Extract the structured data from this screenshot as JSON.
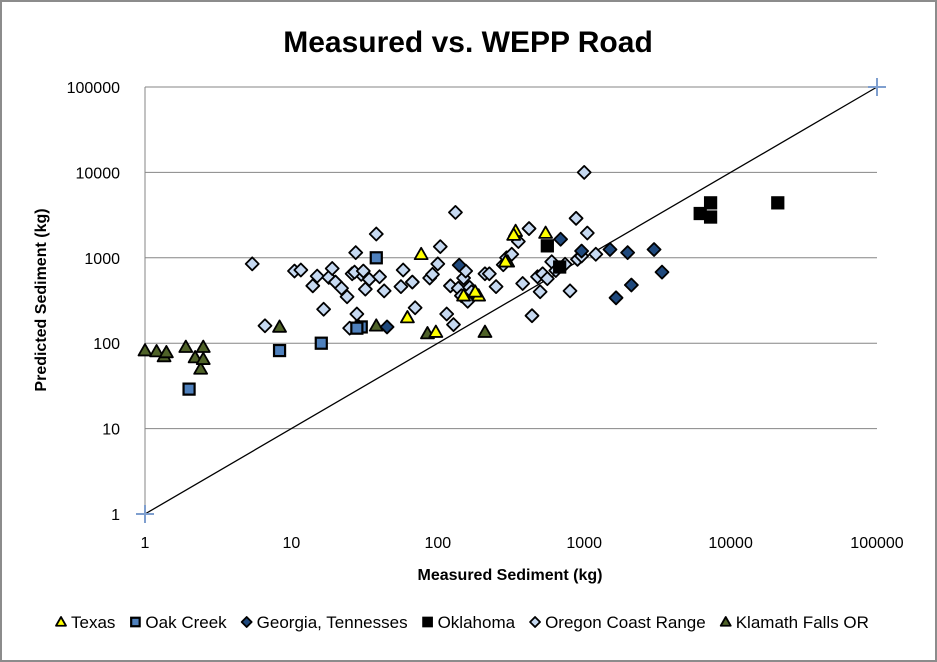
{
  "chart_data": {
    "type": "scatter",
    "title": "Measured vs. WEPP Road",
    "xlabel": "Measured Sediment (kg)",
    "ylabel": "Predicted Sediment (kg)",
    "xscale": "log",
    "yscale": "log",
    "xlim": [
      1,
      100000
    ],
    "ylim": [
      1,
      100000
    ],
    "x_ticks": [
      1,
      10,
      100,
      1000,
      10000,
      100000
    ],
    "x_tick_labels": [
      "1",
      "10",
      "100",
      "1000",
      "10000",
      "100000"
    ],
    "y_ticks": [
      1,
      10,
      100,
      1000,
      10000,
      100000
    ],
    "y_tick_labels": [
      "1",
      "10",
      "100",
      "1000",
      "10000",
      "100000"
    ],
    "grid": "horizontal major",
    "legend_position": "bottom",
    "reference_line": {
      "name": "1:1 line",
      "x": [
        1,
        100000
      ],
      "y": [
        1,
        100000
      ],
      "color": "#000000",
      "end_marker_color": "#7f9fcf"
    },
    "series": [
      {
        "name": "Texas",
        "marker": "triangle",
        "fill": "#ffff00",
        "stroke": "#000000",
        "x": [
          77,
          62,
          97,
          190,
          340,
          330,
          545,
          290,
          180,
          150
        ],
        "y": [
          1100,
          200,
          135,
          360,
          2050,
          1850,
          1950,
          900,
          400,
          360
        ]
      },
      {
        "name": "Oak Creek",
        "marker": "square",
        "fill": "#4f81bd",
        "stroke": "#000000",
        "x": [
          38,
          8.3,
          16,
          2.0,
          30,
          28
        ],
        "y": [
          1000,
          82,
          100,
          29,
          155,
          150
        ]
      },
      {
        "name": "Georgia, Tennesses",
        "marker": "diamond",
        "fill": "#1f497d",
        "stroke": "#000000",
        "x": [
          690,
          1500,
          960,
          1980,
          3000,
          1650,
          2100,
          3400,
          140,
          45
        ],
        "y": [
          1650,
          1250,
          1200,
          1150,
          1250,
          340,
          480,
          680,
          820,
          155
        ]
      },
      {
        "name": "Oklahoma",
        "marker": "square",
        "fill": "#000000",
        "stroke": "#000000",
        "x": [
          560,
          680,
          6200,
          7300,
          7300,
          21000
        ],
        "y": [
          1380,
          780,
          3300,
          4400,
          3000,
          4400
        ]
      },
      {
        "name": "Oregon Coast Range",
        "marker": "diamond",
        "fill": "#c6d9f1",
        "stroke": "#000000",
        "x": [
          5.4,
          6.6,
          10.5,
          11.6,
          14.0,
          15.0,
          16.6,
          18.0,
          19.0,
          20.0,
          22.0,
          24.0,
          25.0,
          26.0,
          27.5,
          28.0,
          30.0,
          32.0,
          34.0,
          38.0,
          43.0,
          58.0,
          70.0,
          88.0,
          92.0,
          100.0,
          104.0,
          115.0,
          122.0,
          128.0,
          132.0,
          138.0,
          145.0,
          150.0,
          155.0,
          160.0,
          165.0,
          170.0,
          210.0,
          225.0,
          250.0,
          280.0,
          295.0,
          320.0,
          355.0,
          380.0,
          420.0,
          440.0,
          480.0,
          500.0,
          520.0,
          560.0,
          600.0,
          640.0,
          740.0,
          800.0,
          880.0,
          900.0,
          960.0,
          1000.0,
          1050.0,
          1200.0,
          27.0,
          31.0,
          40.0,
          56.0,
          67.0
        ],
        "y": [
          850,
          160,
          700,
          720,
          470,
          610,
          250,
          590,
          750,
          520,
          440,
          350,
          150,
          650,
          1150,
          220,
          640,
          430,
          560,
          1900,
          410,
          720,
          260,
          580,
          640,
          850,
          1350,
          220,
          470,
          165,
          3400,
          440,
          360,
          580,
          700,
          310,
          450,
          400,
          650,
          650,
          460,
          830,
          1000,
          1100,
          1550,
          500,
          2200,
          210,
          600,
          400,
          650,
          570,
          900,
          710,
          840,
          410,
          2900,
          960,
          1050,
          10000,
          1950,
          1100,
          680,
          700,
          600,
          460,
          520
        ]
      },
      {
        "name": "Klamath Falls OR",
        "marker": "triangle",
        "fill": "#4f6228",
        "stroke": "#000000",
        "x": [
          1.0,
          1.2,
          1.35,
          1.4,
          1.9,
          2.2,
          2.5,
          2.4,
          2.5,
          8.3,
          29.0,
          38.0,
          85.0,
          210.0,
          300.0
        ],
        "y": [
          82,
          80,
          70,
          78,
          90,
          68,
          90,
          50,
          65,
          155,
          155,
          160,
          130,
          135,
          900
        ]
      }
    ]
  }
}
